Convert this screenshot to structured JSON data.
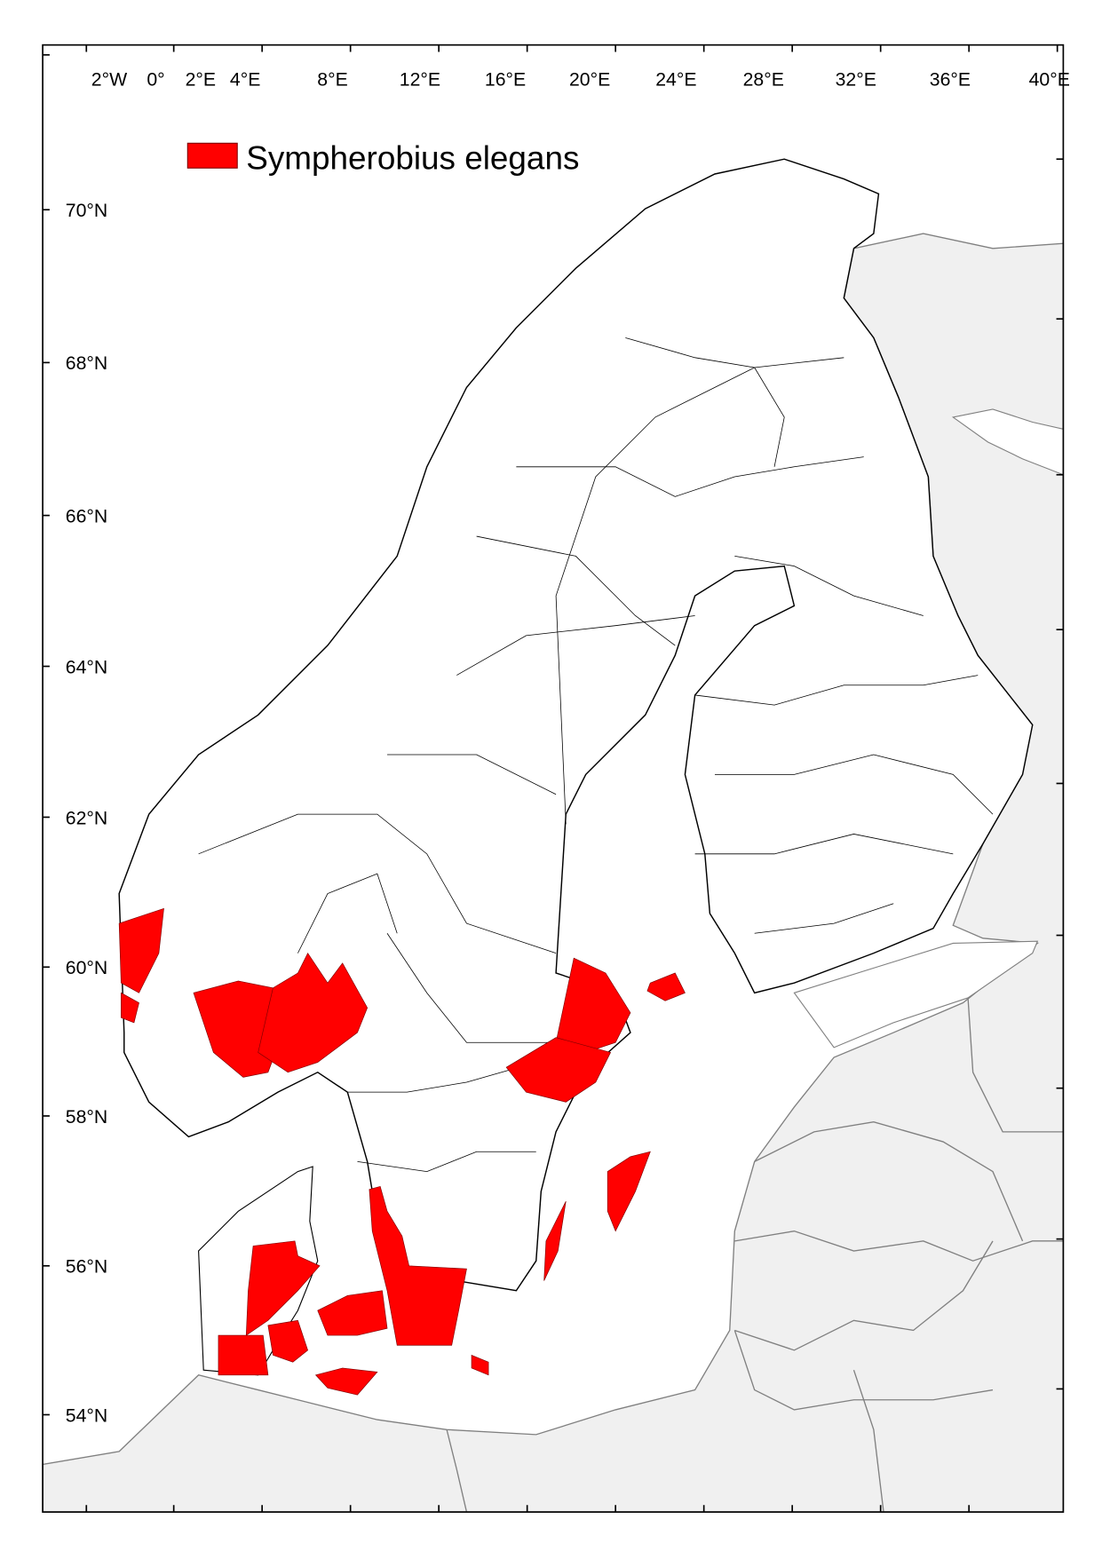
{
  "legend": {
    "label": "Sympherobius elegans",
    "color": "#ff0000"
  },
  "colors": {
    "presence": "#ff0000",
    "land": "#ffffff",
    "other_land": "#f0f0f0",
    "other_border": "#808080",
    "water": "#ffffff"
  },
  "axes": {
    "longitude_labels": [
      "2°W",
      "0°",
      "2°E",
      "4°E",
      "8°E",
      "12°E",
      "16°E",
      "20°E",
      "24°E",
      "28°E",
      "32°E",
      "36°E",
      "40°E"
    ],
    "latitude_labels": [
      "70°N",
      "68°N",
      "66°N",
      "64°N",
      "62°N",
      "60°N",
      "58°N",
      "56°N",
      "54°N"
    ]
  }
}
